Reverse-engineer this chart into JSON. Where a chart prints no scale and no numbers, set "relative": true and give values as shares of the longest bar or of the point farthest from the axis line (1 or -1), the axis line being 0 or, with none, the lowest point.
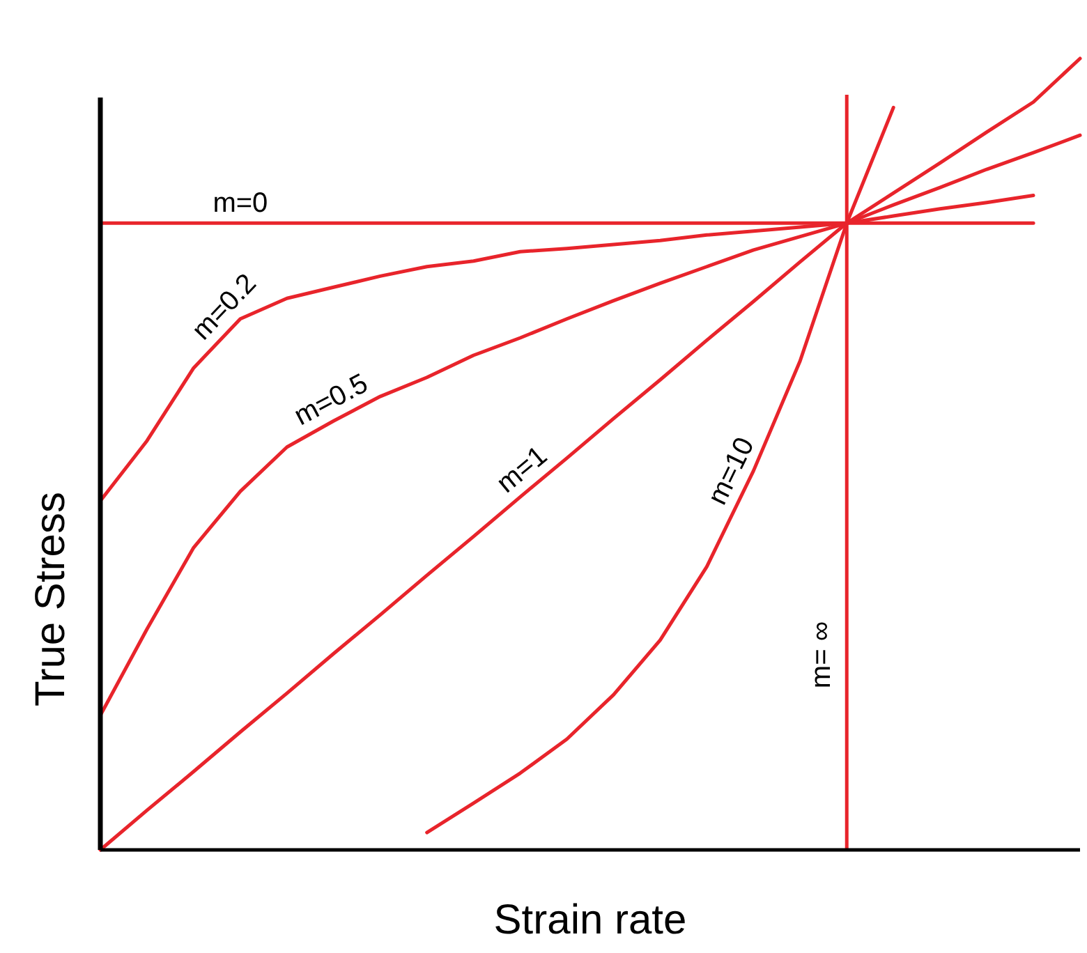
{
  "chart_data": {
    "type": "line",
    "relative": true,
    "xlabel": "Strain rate",
    "ylabel": "True Stress",
    "categories": [
      null,
      null,
      null,
      null,
      null,
      null,
      null,
      null,
      null,
      null,
      null,
      null,
      null,
      null,
      null,
      null,
      null,
      null,
      null,
      null,
      null,
      null
    ],
    "series": [
      {
        "name": "m=0",
        "color": "#e8242b",
        "values": [
          0.792,
          0.792,
          0.792,
          0.792,
          0.792,
          0.792,
          0.792,
          0.792,
          0.792,
          0.792,
          0.792,
          0.792,
          0.792,
          0.792,
          0.792,
          0.792,
          0.792,
          0.792,
          0.792,
          0.792,
          0.792,
          null
        ]
      },
      {
        "name": "m=0.2",
        "color": "#e8242b",
        "values": [
          0.441,
          0.517,
          0.609,
          0.671,
          0.697,
          0.711,
          0.725,
          0.737,
          0.744,
          0.756,
          0.76,
          0.765,
          0.77,
          0.777,
          0.782,
          0.787,
          0.792,
          0.801,
          0.81,
          0.818,
          0.827,
          null
        ]
      },
      {
        "name": "m=0.5",
        "color": "#e8242b",
        "values": [
          0.17,
          0.279,
          0.382,
          0.453,
          0.509,
          0.542,
          0.573,
          0.597,
          0.625,
          0.647,
          0.671,
          0.694,
          0.716,
          0.737,
          0.758,
          0.775,
          0.792,
          0.815,
          0.837,
          0.86,
          0.881,
          0.903
        ]
      },
      {
        "name": "m=1",
        "color": "#e8242b",
        "values": [
          0,
          0.05,
          0.099,
          0.149,
          0.198,
          0.248,
          0.297,
          0.347,
          0.396,
          0.446,
          0.495,
          0.545,
          0.594,
          0.644,
          0.693,
          0.743,
          0.792,
          0.83,
          0.868,
          0.907,
          0.945,
          1
        ]
      },
      {
        "name": "m=10",
        "color": "#e8242b",
        "values": [
          null,
          null,
          null,
          null,
          null,
          null,
          null,
          0.022,
          0.059,
          0.097,
          0.14,
          0.196,
          0.265,
          0.358,
          0.479,
          0.618,
          0.792,
          0.938,
          null,
          null,
          null,
          null
        ]
      }
    ],
    "annotations": [
      "m= ∞"
    ]
  }
}
